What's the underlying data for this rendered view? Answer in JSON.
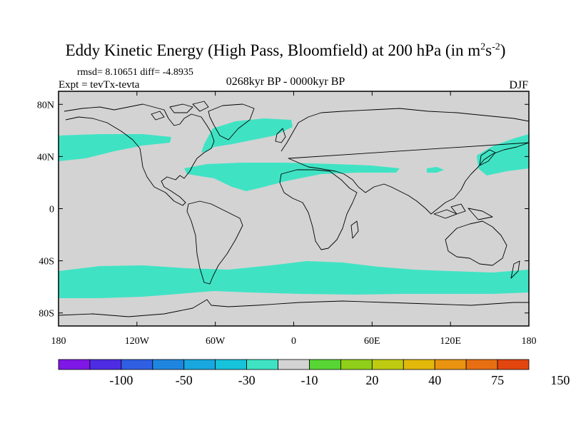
{
  "title": {
    "main": "Eddy Kinetic Energy (High Pass, Bloomfield) at 200 hPa (in m",
    "sup1": "2",
    "mid": "s",
    "sup2": "-2",
    "close": ")"
  },
  "stats": "rmsd= 8.10651 diff= -4.8935",
  "expt": "Expt = tevTx-tevta",
  "period": "0268kyr BP - 0000kyr BP",
  "season": "DJF",
  "map": {
    "background_color": "#d3d3d3",
    "lat_ticks": [
      {
        "label": "80N",
        "value": 80
      },
      {
        "label": "40N",
        "value": 40
      },
      {
        "label": "0",
        "value": 0
      },
      {
        "label": "40S",
        "value": -40
      },
      {
        "label": "80S",
        "value": -80
      }
    ],
    "lon_ticks": [
      {
        "label": "180",
        "value": -180
      },
      {
        "label": "120W",
        "value": -120
      },
      {
        "label": "60W",
        "value": -60
      },
      {
        "label": "0",
        "value": 0
      },
      {
        "label": "60E",
        "value": 60
      },
      {
        "label": "120E",
        "value": 120
      },
      {
        "label": "180",
        "value": 180
      }
    ],
    "anomaly_color": "#3fe3c4"
  },
  "colorbar": {
    "colors": [
      "#7f17e6",
      "#4e2ce3",
      "#2f5fe3",
      "#1f86e0",
      "#18a7df",
      "#17c3db",
      "#3fe3c4",
      "#d3d3d3",
      "#57d534",
      "#8fcf19",
      "#bfcb10",
      "#e2b80b",
      "#ea9311",
      "#e76f12",
      "#e2450e"
    ],
    "labels": [
      {
        "text": "-100",
        "after_box": 2
      },
      {
        "text": "-50",
        "after_box": 4
      },
      {
        "text": "-30",
        "after_box": 6
      },
      {
        "text": "-10",
        "after_box": 8
      },
      {
        "text": "20",
        "after_box": 10
      },
      {
        "text": "40",
        "after_box": 12
      },
      {
        "text": "75",
        "after_box": 14
      },
      {
        "text": "150",
        "after_box": 16
      }
    ]
  }
}
